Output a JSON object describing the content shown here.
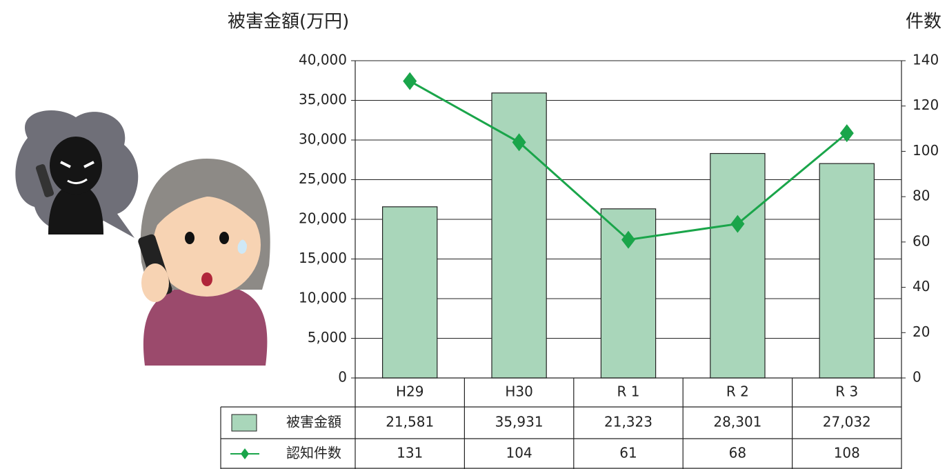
{
  "chart_data": {
    "type": "bar",
    "y_label": "被害金額(万円)",
    "y2_label": "件数",
    "categories": [
      "H29",
      "H30",
      "R 1",
      "R 2",
      "R 3"
    ],
    "series": [
      {
        "name": "被害金額",
        "type": "bar",
        "color": "#a9d6ba",
        "values": [
          21581,
          35931,
          21323,
          28301,
          27032
        ],
        "value_labels": [
          "21,581",
          "35,931",
          "21,323",
          "28,301",
          "27,032"
        ]
      },
      {
        "name": "認知件数",
        "type": "line",
        "axis": "y2",
        "color": "#1aa54a",
        "values": [
          131,
          104,
          61,
          68,
          108
        ]
      }
    ],
    "ylim": [
      0,
      40000
    ],
    "yticks": [
      0,
      {
        "value": 5000,
        "label": "5,000"
      },
      {
        "value": 10000,
        "label": "10,000"
      },
      {
        "value": 15000,
        "label": "15,000"
      },
      {
        "value": 20000,
        "label": "20,000"
      },
      {
        "value": 25000,
        "label": "25,000"
      },
      {
        "value": 30000,
        "label": "30,000"
      },
      {
        "value": 35000,
        "label": "35,000"
      },
      {
        "value": 40000,
        "label": "40,000"
      }
    ],
    "y2lim": [
      0,
      140
    ],
    "y2ticks": [
      0,
      20,
      40,
      60,
      80,
      100,
      120,
      140
    ],
    "grid": true
  }
}
